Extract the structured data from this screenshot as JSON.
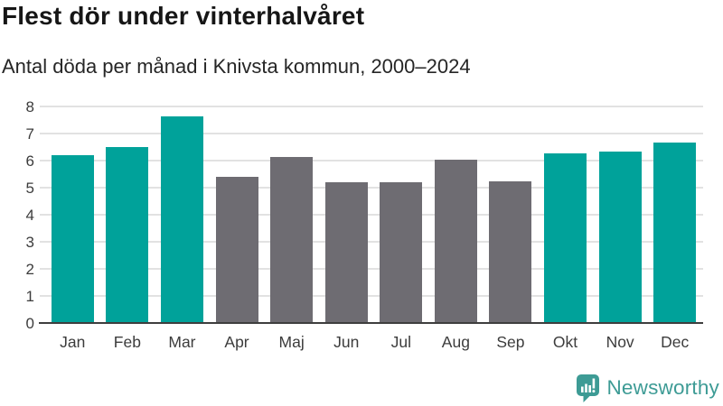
{
  "header": {
    "title": "Flest dör under vinterhalvåret",
    "subtitle": "Antal döda per månad i Knivsta kommun, 2000–2024"
  },
  "chart_data": {
    "type": "bar",
    "title": "Flest dör under vinterhalvåret",
    "subtitle": "Antal döda per månad i Knivsta kommun, 2000–2024",
    "categories": [
      "Jan",
      "Feb",
      "Mar",
      "Apr",
      "Maj",
      "Jun",
      "Jul",
      "Aug",
      "Sep",
      "Okt",
      "Nov",
      "Dec"
    ],
    "values": [
      6.2,
      6.5,
      7.62,
      5.4,
      6.12,
      5.2,
      5.2,
      6.05,
      5.25,
      6.28,
      6.32,
      6.67
    ],
    "bar_colors": [
      "#00a29a",
      "#00a29a",
      "#00a29a",
      "#6e6c72",
      "#6e6c72",
      "#6e6c72",
      "#6e6c72",
      "#6e6c72",
      "#6e6c72",
      "#00a29a",
      "#00a29a",
      "#00a29a"
    ],
    "color_meaning": {
      "winter_months": "#00a29a",
      "summer_months": "#6e6c72"
    },
    "xlabel": "",
    "ylabel": "",
    "ylim": [
      0,
      8
    ],
    "yticks": [
      0,
      1,
      2,
      3,
      4,
      5,
      6,
      7,
      8
    ],
    "grid": true,
    "grid_color": "#e2e2e2",
    "axis_line_color": "#3e3e3e",
    "legend": false
  },
  "footer": {
    "brand": "Newsworthy",
    "brand_color": "#3d9b95",
    "logo_icon": "bar-chart-speech-bubble-icon"
  }
}
